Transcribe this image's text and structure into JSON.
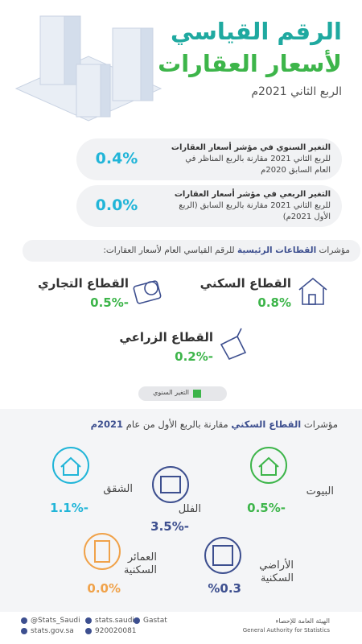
{
  "header": {
    "title_line1": "الرقم القياسي",
    "title_line2": "لأسعار العقارات",
    "subtitle": "الربع الثاني 2021م"
  },
  "summary": [
    {
      "bold": "التغير السنوي في مؤشر أسعار العقارات",
      "text": "للربع الثاني 2021 مقارنة بالربع المناظر في العام السابق 2020م",
      "value": "0.4%"
    },
    {
      "bold": "التغير الربعي في مؤشر أسعار العقارات",
      "text": "للربع الثاني 2021 مقارنة بالربع السابق (الربع الأول 2021م)",
      "value": "0.0%"
    }
  ],
  "sectors_heading": {
    "pre": "مؤشرات",
    "bold": "القطاعات الرئيسية",
    "post": "للرقم القياسي العام لأسعار العقارات:"
  },
  "sectors": [
    {
      "name": "القطاع السكني",
      "value": "0.8%"
    },
    {
      "name": "القطاع التجاري",
      "value": "-0.5%"
    },
    {
      "name": "القطاع الزراعي",
      "value": "-0.2%"
    }
  ],
  "legend": "التغير السنوي",
  "residential_heading": {
    "pre": "مؤشرات",
    "bold": "القطاع السكني",
    "post": "مقارنة بالربع الأول من عام",
    "bold2": "2021م"
  },
  "residential": [
    {
      "name": "البيوت",
      "value": "-0.5%"
    },
    {
      "name": "الفلل",
      "value": "-3.5%"
    },
    {
      "name": "الشقق",
      "value": "-1.1%"
    },
    {
      "name": "الأراضي السكنية",
      "value": "%0.3"
    },
    {
      "name": "العمائر السكنية",
      "value": "0.0%"
    }
  ],
  "footer": {
    "twitter": "@Stats_Saudi",
    "facebook": "stats.saudi",
    "linkedin": "Gastat",
    "website": "stats.gov.sa",
    "phone": "920020081",
    "org_ar": "الهيئة العامة للإحصاء",
    "org_en": "General Authority for Statistics"
  }
}
